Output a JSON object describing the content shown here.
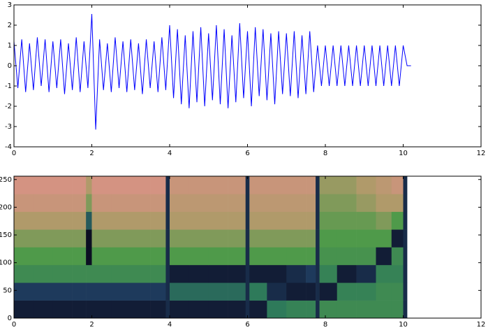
{
  "chart_data": [
    {
      "type": "line",
      "color": "#0000ff",
      "x": [
        0.0,
        0.1,
        0.2,
        0.3,
        0.4,
        0.5,
        0.6,
        0.7,
        0.8,
        0.9,
        1.0,
        1.1,
        1.2,
        1.3,
        1.4,
        1.5,
        1.6,
        1.7,
        1.8,
        1.9,
        2.0,
        2.1,
        2.2,
        2.3,
        2.4,
        2.5,
        2.6,
        2.7,
        2.8,
        2.9,
        3.0,
        3.1,
        3.2,
        3.3,
        3.4,
        3.5,
        3.6,
        3.7,
        3.8,
        3.9,
        4.0,
        4.1,
        4.2,
        4.3,
        4.4,
        4.5,
        4.6,
        4.7,
        4.8,
        4.9,
        5.0,
        5.1,
        5.2,
        5.3,
        5.4,
        5.5,
        5.6,
        5.7,
        5.8,
        5.9,
        6.0,
        6.1,
        6.2,
        6.3,
        6.4,
        6.5,
        6.6,
        6.7,
        6.8,
        6.9,
        7.0,
        7.1,
        7.2,
        7.3,
        7.4,
        7.5,
        7.6,
        7.7,
        7.8,
        7.9,
        8.0,
        8.1,
        8.2,
        8.3,
        8.4,
        8.5,
        8.6,
        8.7,
        8.8,
        8.9,
        9.0,
        9.1,
        9.2,
        9.3,
        9.4,
        9.5,
        9.6,
        9.7,
        9.8,
        9.9,
        10.0,
        10.1,
        10.2
      ],
      "values": [
        1.2,
        -1.1,
        1.3,
        -1.3,
        1.1,
        -1.2,
        1.4,
        -1.0,
        1.3,
        -1.3,
        1.2,
        -1.1,
        1.3,
        -1.4,
        1.1,
        -1.2,
        1.4,
        -1.3,
        1.2,
        -1.1,
        2.55,
        -3.15,
        1.3,
        -1.2,
        1.1,
        -1.3,
        1.4,
        -1.1,
        1.2,
        -1.3,
        1.3,
        -1.2,
        1.1,
        -1.4,
        1.3,
        -1.1,
        1.2,
        -1.3,
        1.4,
        -1.2,
        2.0,
        -1.6,
        1.8,
        -1.9,
        1.5,
        -2.1,
        1.7,
        -1.8,
        1.9,
        -2.0,
        1.6,
        -1.7,
        2.0,
        -1.9,
        1.8,
        -2.1,
        1.5,
        -1.8,
        2.1,
        -1.6,
        1.7,
        -2.0,
        1.9,
        -1.5,
        1.8,
        -1.7,
        1.6,
        -1.9,
        1.7,
        -1.4,
        1.6,
        -1.5,
        1.7,
        -1.6,
        1.5,
        -1.4,
        1.7,
        -1.3,
        1.0,
        -1.0,
        1.0,
        -1.0,
        1.0,
        -1.0,
        1.0,
        -1.0,
        1.0,
        -1.0,
        1.0,
        -1.0,
        1.0,
        -1.0,
        1.0,
        -1.0,
        1.0,
        -1.0,
        1.0,
        -1.0,
        1.0,
        -1.0,
        1.0,
        0,
        0
      ],
      "xlim": [
        0,
        12
      ],
      "xticks": [
        0,
        2,
        4,
        6,
        8,
        10,
        12
      ],
      "ylim": [
        -4,
        3
      ],
      "yticks": [
        -4,
        -3,
        -2,
        -1,
        0,
        1,
        2,
        3
      ]
    },
    {
      "type": "heatmap",
      "x_edges": [
        0,
        0.5,
        1,
        1.5,
        1.85,
        2.0,
        2.5,
        3,
        3.5,
        3.9,
        4.0,
        4.5,
        5,
        5.5,
        5.95,
        6.05,
        6.5,
        7,
        7.5,
        7.75,
        7.85,
        8.3,
        8.8,
        9.3,
        9.7,
        10.0,
        10.1
      ],
      "y_edges": [
        0,
        32,
        64,
        96,
        128,
        160,
        192,
        224,
        256
      ],
      "colors": [
        "#05000f",
        "#1e3a5c",
        "#2e7a5a",
        "#4f9a4a",
        "#b09a6a",
        "#e0908a"
      ],
      "z": [
        [
          0.1,
          0.1,
          0.1,
          0.1,
          0.1,
          0.1,
          0.1,
          0.1,
          0.1,
          0.15,
          0.1,
          0.1,
          0.1,
          0.1,
          0.15,
          0.1,
          0.4,
          0.45,
          0.45,
          0.15,
          0.5,
          0.5,
          0.5,
          0.5,
          0.5,
          0.15
        ],
        [
          0.2,
          0.2,
          0.2,
          0.2,
          0.2,
          0.2,
          0.2,
          0.2,
          0.2,
          0.15,
          0.35,
          0.35,
          0.35,
          0.35,
          0.15,
          0.4,
          0.15,
          0.1,
          0.1,
          0.15,
          0.1,
          0.45,
          0.45,
          0.5,
          0.5,
          0.15
        ],
        [
          0.5,
          0.5,
          0.5,
          0.5,
          0.5,
          0.5,
          0.5,
          0.5,
          0.5,
          0.15,
          0.1,
          0.1,
          0.1,
          0.1,
          0.15,
          0.1,
          0.1,
          0.15,
          0.2,
          0.15,
          0.45,
          0.1,
          0.15,
          0.45,
          0.45,
          0.15
        ],
        [
          0.6,
          0.6,
          0.6,
          0.6,
          0.05,
          0.6,
          0.6,
          0.6,
          0.6,
          0.15,
          0.6,
          0.6,
          0.6,
          0.6,
          0.15,
          0.6,
          0.6,
          0.6,
          0.6,
          0.15,
          0.55,
          0.55,
          0.55,
          0.1,
          0.5,
          0.15
        ],
        [
          0.7,
          0.7,
          0.7,
          0.7,
          0.05,
          0.7,
          0.7,
          0.7,
          0.7,
          0.15,
          0.7,
          0.7,
          0.7,
          0.7,
          0.15,
          0.7,
          0.7,
          0.7,
          0.7,
          0.15,
          0.6,
          0.6,
          0.6,
          0.6,
          0.1,
          0.15
        ],
        [
          0.8,
          0.8,
          0.8,
          0.8,
          0.3,
          0.8,
          0.8,
          0.8,
          0.8,
          0.15,
          0.8,
          0.8,
          0.8,
          0.8,
          0.15,
          0.8,
          0.8,
          0.8,
          0.8,
          0.15,
          0.65,
          0.65,
          0.65,
          0.7,
          0.6,
          0.15
        ],
        [
          0.9,
          0.9,
          0.9,
          0.9,
          0.7,
          0.9,
          0.9,
          0.9,
          0.9,
          0.15,
          0.85,
          0.85,
          0.85,
          0.85,
          0.15,
          0.85,
          0.85,
          0.85,
          0.85,
          0.15,
          0.7,
          0.7,
          0.75,
          0.8,
          0.8,
          0.15
        ],
        [
          0.95,
          0.95,
          0.95,
          0.95,
          0.8,
          0.95,
          0.95,
          0.95,
          0.95,
          0.15,
          0.9,
          0.9,
          0.9,
          0.9,
          0.15,
          0.9,
          0.9,
          0.9,
          0.9,
          0.15,
          0.75,
          0.75,
          0.8,
          0.85,
          0.9,
          0.15
        ]
      ],
      "xlim": [
        0,
        12
      ],
      "xticks": [
        0,
        2,
        4,
        6,
        8,
        10,
        12
      ],
      "ylim": [
        0,
        256
      ],
      "yticks": [
        0,
        50,
        100,
        150,
        200,
        250
      ]
    }
  ]
}
